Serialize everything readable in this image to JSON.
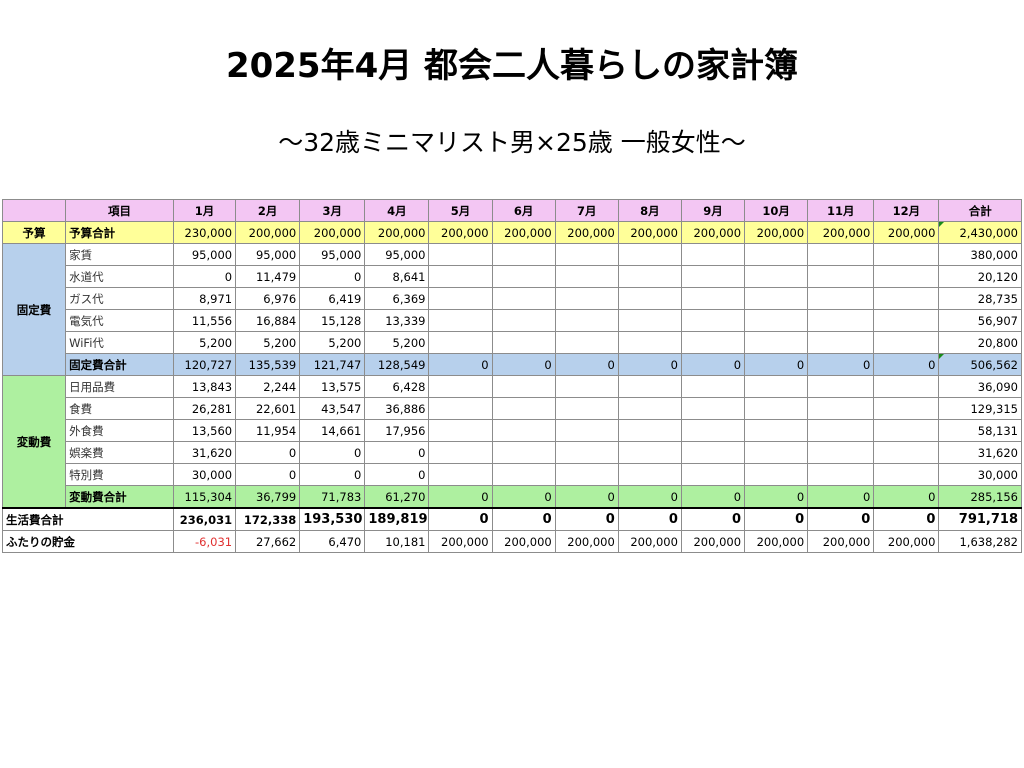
{
  "title": "2025年4月 都会二人暮らしの家計簿",
  "subtitle": "～32歳ミニマリスト男×25歳 一般女性～",
  "header": {
    "item": "項目",
    "months": [
      "1月",
      "2月",
      "3月",
      "4月",
      "5月",
      "6月",
      "7月",
      "8月",
      "9月",
      "10月",
      "11月",
      "12月"
    ],
    "total": "合計"
  },
  "budget": {
    "section": "予算",
    "label": "予算合計",
    "values": [
      "230,000",
      "200,000",
      "200,000",
      "200,000",
      "200,000",
      "200,000",
      "200,000",
      "200,000",
      "200,000",
      "200,000",
      "200,000",
      "200,000"
    ],
    "total": "2,430,000"
  },
  "fixed": {
    "section": "固定費",
    "rows": [
      {
        "label": "家賃",
        "values": [
          "95,000",
          "95,000",
          "95,000",
          "95,000",
          "",
          "",
          "",
          "",
          "",
          "",
          "",
          ""
        ],
        "total": "380,000"
      },
      {
        "label": "水道代",
        "values": [
          "0",
          "11,479",
          "0",
          "8,641",
          "",
          "",
          "",
          "",
          "",
          "",
          "",
          ""
        ],
        "total": "20,120"
      },
      {
        "label": "ガス代",
        "values": [
          "8,971",
          "6,976",
          "6,419",
          "6,369",
          "",
          "",
          "",
          "",
          "",
          "",
          "",
          ""
        ],
        "total": "28,735"
      },
      {
        "label": "電気代",
        "values": [
          "11,556",
          "16,884",
          "15,128",
          "13,339",
          "",
          "",
          "",
          "",
          "",
          "",
          "",
          ""
        ],
        "total": "56,907"
      },
      {
        "label": "WiFi代",
        "values": [
          "5,200",
          "5,200",
          "5,200",
          "5,200",
          "",
          "",
          "",
          "",
          "",
          "",
          "",
          ""
        ],
        "total": "20,800"
      }
    ],
    "subtotal": {
      "label": "固定費合計",
      "values": [
        "120,727",
        "135,539",
        "121,747",
        "128,549",
        "0",
        "0",
        "0",
        "0",
        "0",
        "0",
        "0",
        "0"
      ],
      "total": "506,562"
    }
  },
  "variable": {
    "section": "変動費",
    "rows": [
      {
        "label": "日用品費",
        "values": [
          "13,843",
          "2,244",
          "13,575",
          "6,428",
          "",
          "",
          "",
          "",
          "",
          "",
          "",
          ""
        ],
        "total": "36,090"
      },
      {
        "label": "食費",
        "values": [
          "26,281",
          "22,601",
          "43,547",
          "36,886",
          "",
          "",
          "",
          "",
          "",
          "",
          "",
          ""
        ],
        "total": "129,315"
      },
      {
        "label": "外食費",
        "values": [
          "13,560",
          "11,954",
          "14,661",
          "17,956",
          "",
          "",
          "",
          "",
          "",
          "",
          "",
          ""
        ],
        "total": "58,131"
      },
      {
        "label": "娯楽費",
        "values": [
          "31,620",
          "0",
          "0",
          "0",
          "",
          "",
          "",
          "",
          "",
          "",
          "",
          ""
        ],
        "total": "31,620"
      },
      {
        "label": "特別費",
        "values": [
          "30,000",
          "0",
          "0",
          "0",
          "",
          "",
          "",
          "",
          "",
          "",
          "",
          ""
        ],
        "total": "30,000"
      }
    ],
    "subtotal": {
      "label": "変動費合計",
      "values": [
        "115,304",
        "36,799",
        "71,783",
        "61,270",
        "0",
        "0",
        "0",
        "0",
        "0",
        "0",
        "0",
        "0"
      ],
      "total": "285,156"
    }
  },
  "living_total": {
    "label": "生活費合計",
    "values": [
      "236,031",
      "172,338",
      "193,530",
      "189,819",
      "0",
      "0",
      "0",
      "0",
      "0",
      "0",
      "0",
      "0"
    ],
    "total": "791,718"
  },
  "savings": {
    "label": "ふたりの貯金",
    "values": [
      "-6,031",
      "27,662",
      "6,470",
      "10,181",
      "200,000",
      "200,000",
      "200,000",
      "200,000",
      "200,000",
      "200,000",
      "200,000",
      "200,000"
    ],
    "total": "1,638,282"
  },
  "colors": {
    "header_bg": "#f3c6f3",
    "budget_bg": "#ffff99",
    "fixed_bg": "#b7d0ec",
    "variable_bg": "#aef0a0",
    "negative_text": "#e03030"
  }
}
